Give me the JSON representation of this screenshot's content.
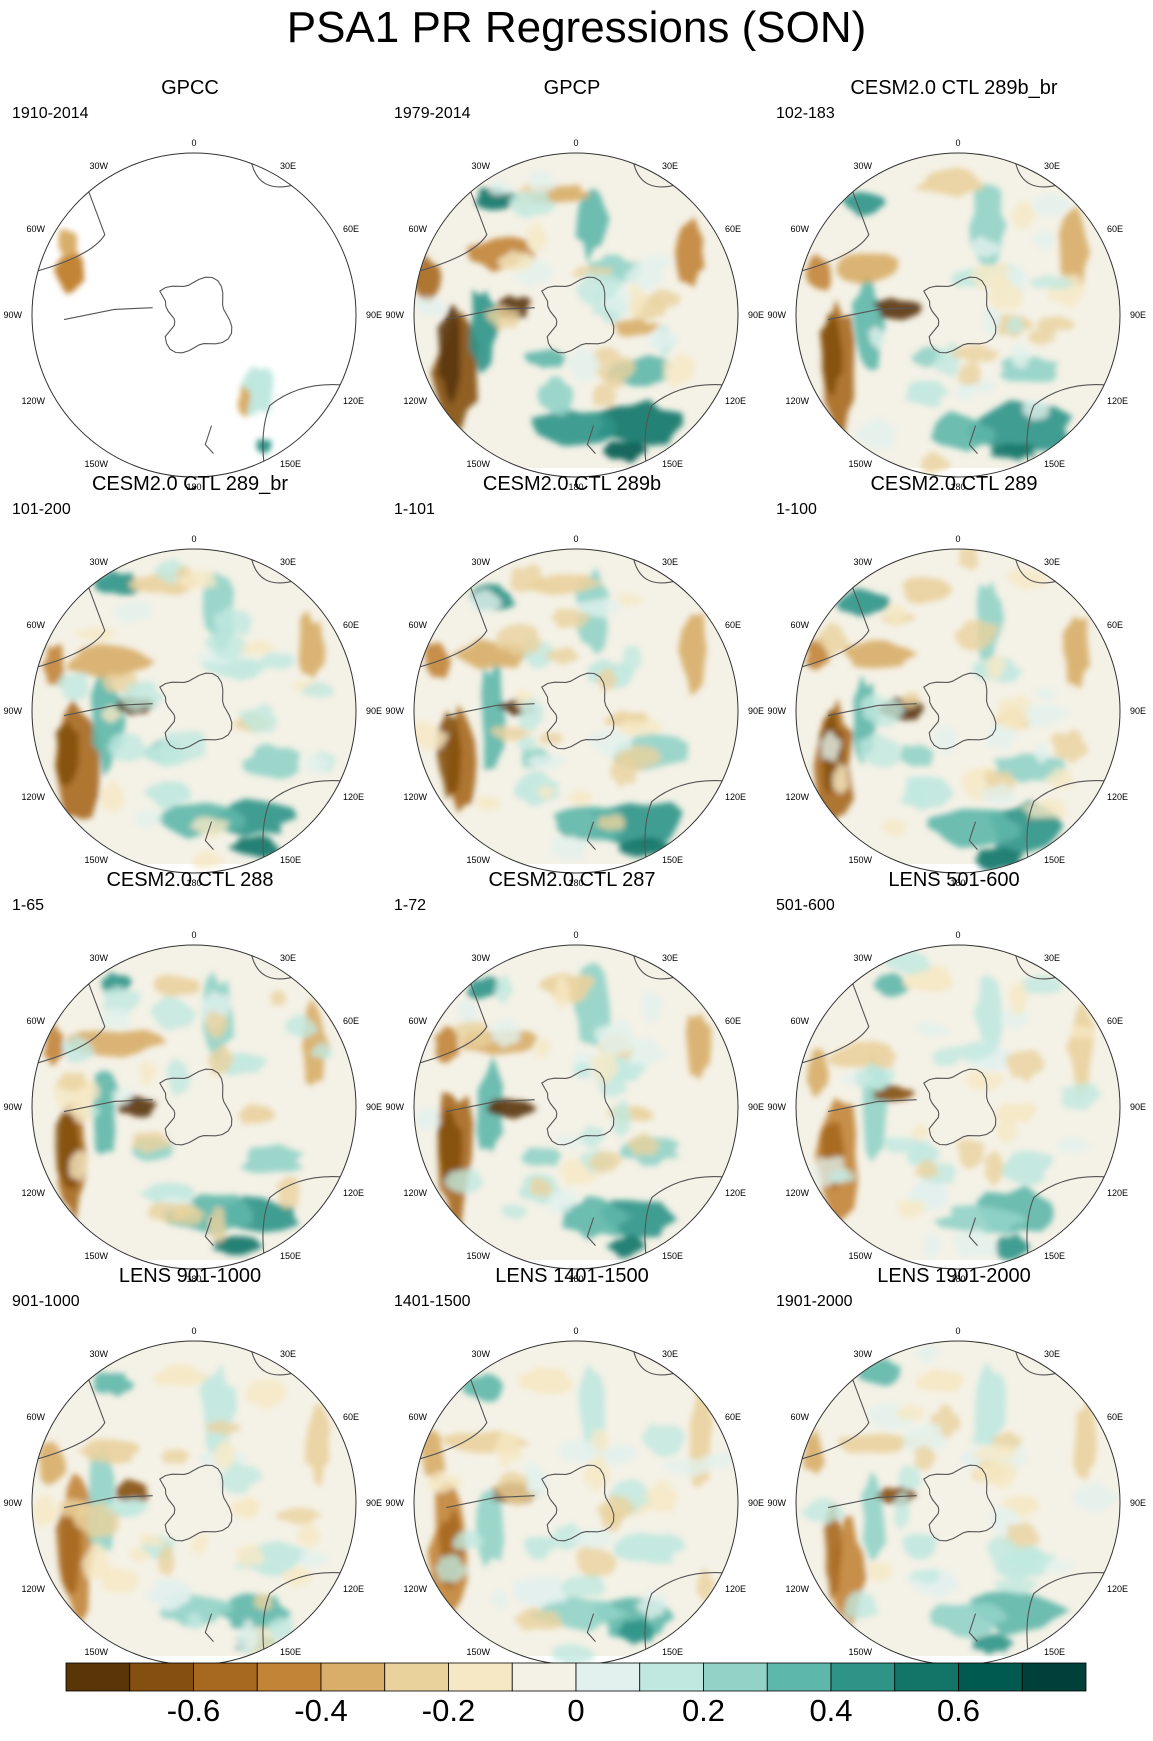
{
  "title": "PSA1 PR Regressions (SON)",
  "lon_labels": [
    "0",
    "30E",
    "60E",
    "90E",
    "120E",
    "150E",
    "180",
    "150W",
    "120W",
    "90W",
    "60W",
    "30W"
  ],
  "panels": [
    {
      "title": "GPCC",
      "period": "1910-2014",
      "style": "obs-land"
    },
    {
      "title": "GPCP",
      "period": "1979-2014",
      "style": "strong"
    },
    {
      "title": "CESM2.0 CTL 289b_br",
      "period": "102-183",
      "style": "model"
    },
    {
      "title": "CESM2.0 CTL 289_br",
      "period": "101-200",
      "style": "model"
    },
    {
      "title": "CESM2.0 CTL 289b",
      "period": "1-101",
      "style": "model"
    },
    {
      "title": "CESM2.0 CTL 289",
      "period": "1-100",
      "style": "model"
    },
    {
      "title": "CESM2.0 CTL 288",
      "period": "1-65",
      "style": "model"
    },
    {
      "title": "CESM2.0 CTL 287",
      "period": "1-72",
      "style": "model"
    },
    {
      "title": "LENS 501-600",
      "period": "501-600",
      "style": "weak"
    },
    {
      "title": "LENS 901-1000",
      "period": "901-1000",
      "style": "weak"
    },
    {
      "title": "LENS 1401-1500",
      "period": "1401-1500",
      "style": "weak"
    },
    {
      "title": "LENS 1901-2000",
      "period": "1901-2000",
      "style": "weak"
    }
  ],
  "colorbar": {
    "colors": [
      "#5a3508",
      "#84500f",
      "#a7681f",
      "#c28436",
      "#d8ae68",
      "#ead29d",
      "#f6e8c4",
      "#f4f1e6",
      "#e2f1ee",
      "#c0e8e0",
      "#92d3c8",
      "#5eb7ab",
      "#2f9488",
      "#137568",
      "#005a4f",
      "#00403a"
    ],
    "tick_labels": [
      "-0.6",
      "-0.4",
      "-0.2",
      "0",
      "0.2",
      "0.4",
      "0.6"
    ],
    "tick_values": [
      -0.6,
      -0.4,
      -0.2,
      0,
      0.2,
      0.4,
      0.6
    ],
    "min": -0.8,
    "max": 0.8
  }
}
